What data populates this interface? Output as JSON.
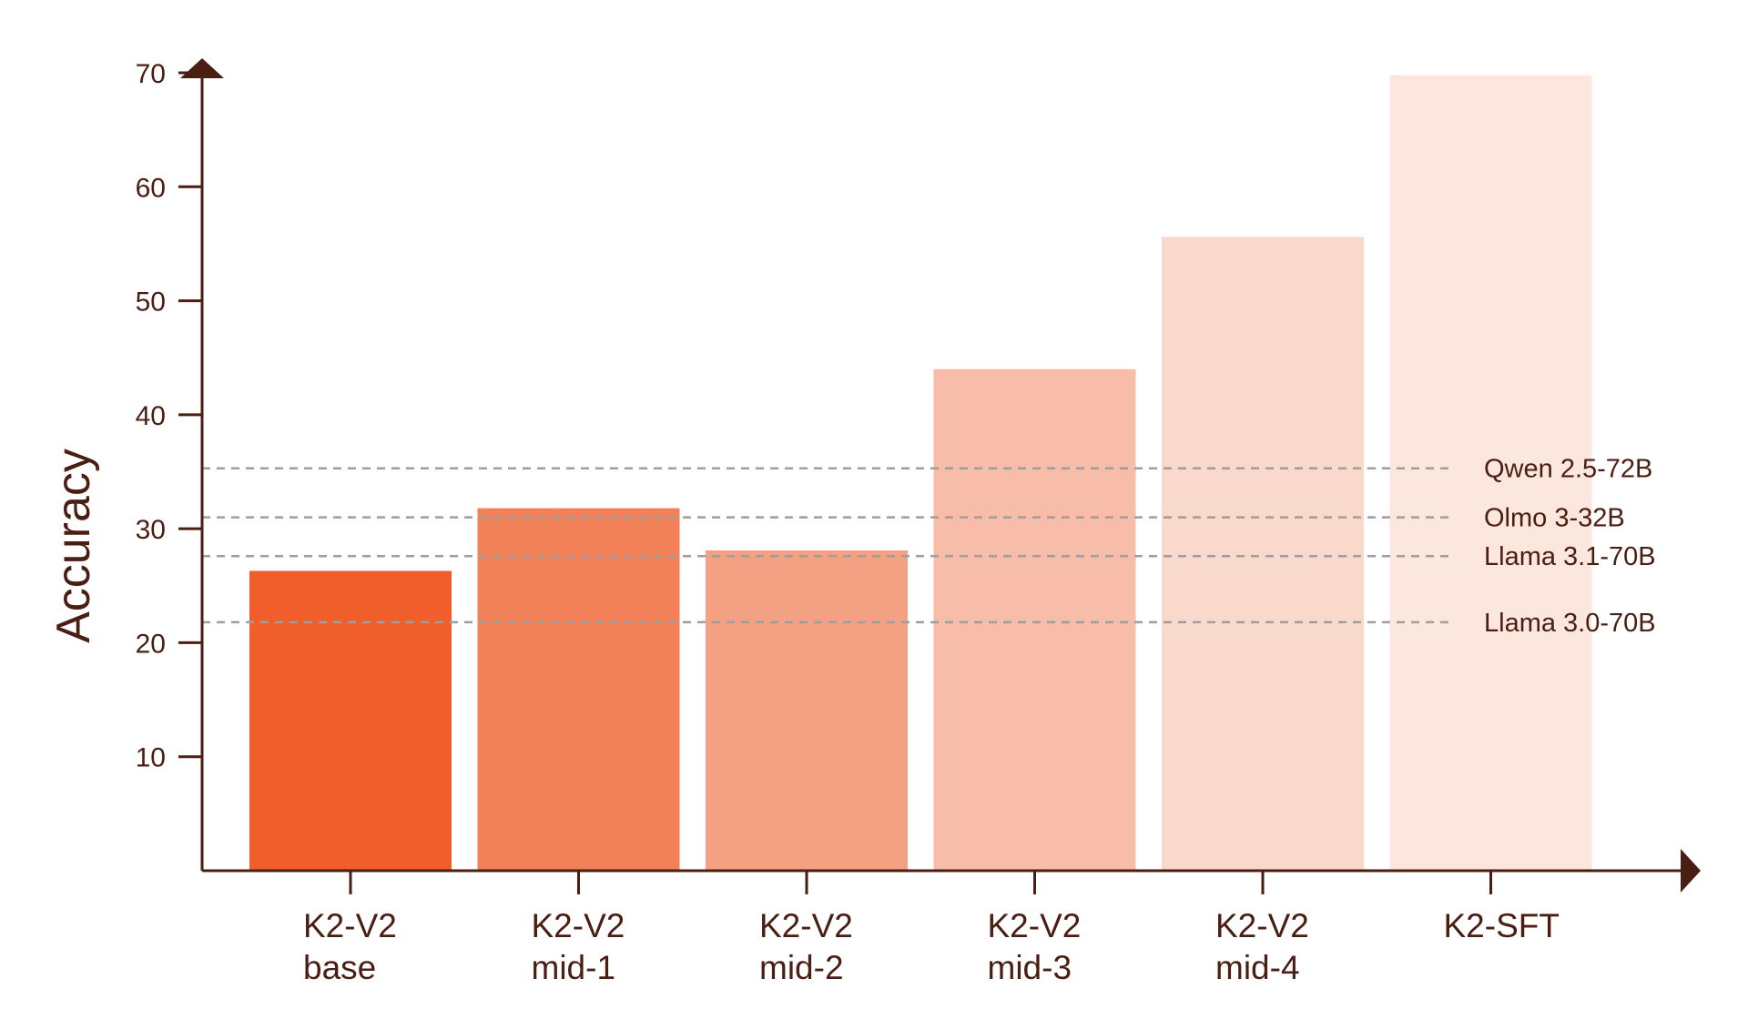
{
  "chart_data": {
    "type": "bar",
    "title": "",
    "xlabel": "",
    "ylabel": "Accuracy",
    "ylim": [
      0,
      70
    ],
    "yticks": [
      10,
      20,
      30,
      40,
      50,
      60,
      70
    ],
    "categories": [
      [
        "K2-V2",
        "base"
      ],
      [
        "K2-V2",
        "mid-1"
      ],
      [
        "K2-V2",
        "mid-2"
      ],
      [
        "K2-V2",
        "mid-3"
      ],
      [
        "K2-V2",
        "mid-4"
      ],
      [
        "K2-SFT"
      ]
    ],
    "values": [
      26.3,
      31.8,
      28.1,
      44.0,
      55.6,
      69.8
    ],
    "bar_colors": [
      "#ef5e2b",
      "#f28159",
      "#f4a083",
      "#f8bda8",
      "#fad9cd",
      "#fce7de"
    ],
    "reference_lines": [
      {
        "name": "Qwen 2.5-72B",
        "value": 35.3
      },
      {
        "name": "Olmo 3-32B",
        "value": 31.0
      },
      {
        "name": "Llama 3.1-70B",
        "value": 27.6
      },
      {
        "name": "Llama 3.0-70B",
        "value": 21.8
      }
    ],
    "grid": false,
    "colors": {
      "axis": "#4a1e12",
      "text": "#4a1e12",
      "reference_line": "#9e9e9e"
    }
  }
}
